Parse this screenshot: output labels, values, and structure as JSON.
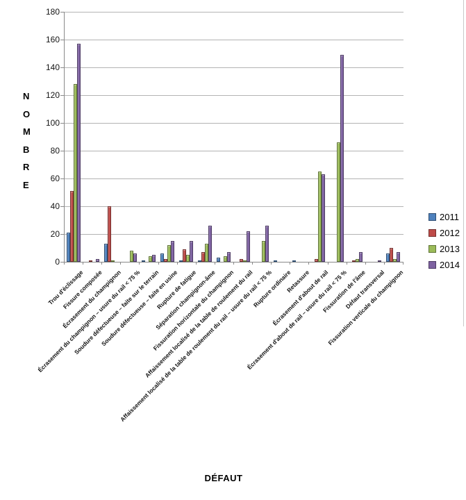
{
  "chart_data": {
    "type": "bar",
    "title": "",
    "xlabel": "DÉFAUT",
    "ylabel": "NOMBRE",
    "ylim": [
      0,
      180
    ],
    "ytick_step": 20,
    "grid": "horizontal",
    "legend_position": "right",
    "categories": [
      "Trou d'éclissage",
      "Fissure composée",
      "Écrasement du champignon",
      "Écrasement du champignon – usure du rail < 75 %",
      "Soudure défectueuse – faite sur le terrain",
      "Soudure défectueuse – faite en usine",
      "Rupture de fatigue",
      "Séparation champignon-âme",
      "Fissuration horizontale du champignon",
      "Affaissement localisé de la table de roulement du rail",
      "Affaissement localisé de la table de roulement du rail – usure du rail < 75 %",
      "Rupture ordinaire",
      "Retassure",
      "Écrasement d'about de rail",
      "Écrasement d'about de rail – usure du rail < 75 %",
      "Fissuration de l'âme",
      "Défaut transversal",
      "Fissuration verticale du champignon"
    ],
    "series": [
      {
        "name": "2011",
        "color": "#4E81BD",
        "border": "#2E4D71",
        "values": [
          21,
          0,
          13,
          0,
          1,
          6,
          1,
          1,
          3,
          0,
          0,
          1,
          1,
          0,
          0,
          0,
          0,
          6
        ]
      },
      {
        "name": "2012",
        "color": "#BE4B48",
        "border": "#73302E",
        "values": [
          51,
          1,
          40,
          0,
          0,
          2,
          9,
          7,
          0,
          2,
          0,
          0,
          0,
          2,
          0,
          1,
          0,
          10
        ]
      },
      {
        "name": "2013",
        "color": "#9BBB59",
        "border": "#5F7436",
        "values": [
          128,
          0,
          1,
          8,
          4,
          12,
          5,
          13,
          4,
          1,
          15,
          0,
          0,
          65,
          86,
          2,
          0,
          2
        ]
      },
      {
        "name": "2014",
        "color": "#7E62A1",
        "border": "#4D3B64",
        "values": [
          157,
          2,
          0,
          6,
          5,
          15,
          15,
          26,
          7,
          22,
          26,
          0,
          0,
          63,
          149,
          7,
          1,
          7
        ]
      }
    ]
  }
}
